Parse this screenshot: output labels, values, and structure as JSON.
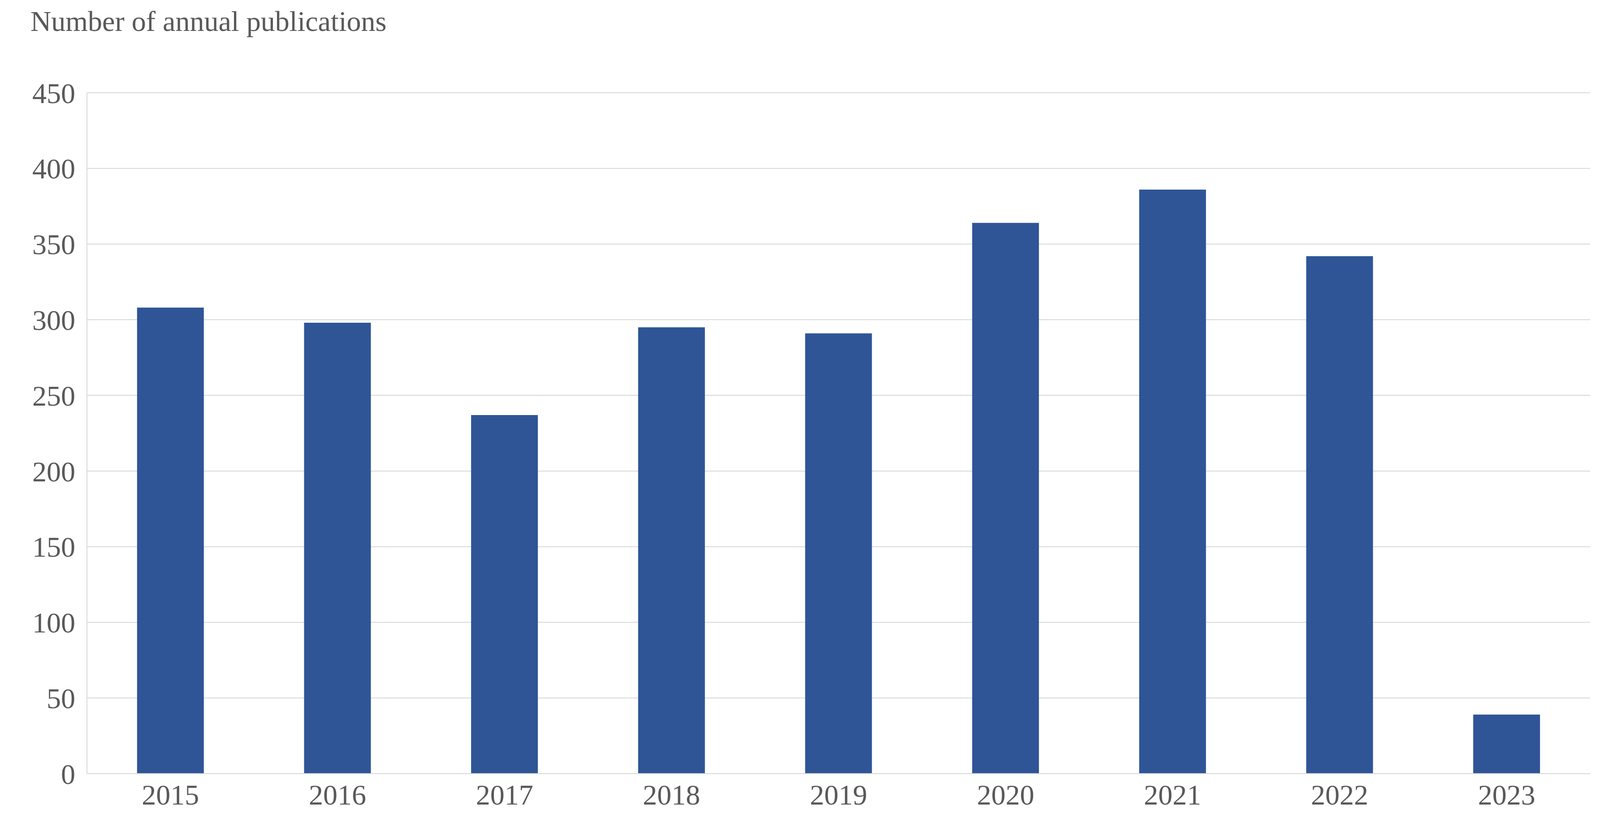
{
  "chart_data": {
    "type": "bar",
    "title": "Number of annual publications",
    "categories": [
      "2015",
      "2016",
      "2017",
      "2018",
      "2019",
      "2020",
      "2021",
      "2022",
      "2023"
    ],
    "values": [
      308,
      298,
      237,
      295,
      291,
      364,
      386,
      342,
      39
    ],
    "color": "#2f5597",
    "ylim": [
      0,
      450
    ],
    "yticks": [
      0,
      50,
      100,
      150,
      200,
      250,
      300,
      350,
      400,
      450
    ],
    "grid": true
  }
}
